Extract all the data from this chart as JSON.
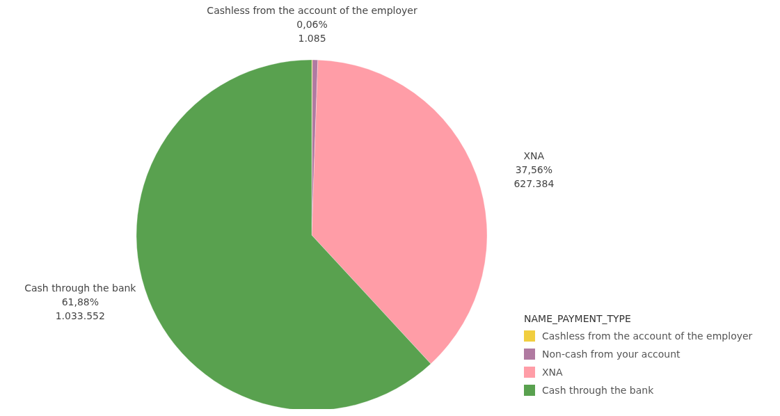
{
  "chart_data": {
    "type": "pie",
    "legend_title": "NAME_PAYMENT_TYPE",
    "categories": [
      "Cashless from the account of the employer",
      "Non-cash from your account",
      "XNA",
      "Cash through the bank"
    ],
    "values": [
      1085,
      8230,
      627384,
      1033552
    ],
    "colors": [
      "#f1ce3f",
      "#b07aa1",
      "#ff9da7",
      "#59a14f"
    ],
    "value_labels": [
      "0,06%\n1.085",
      null,
      "37,56%\n627.384",
      "61,88%\n1.033.552"
    ],
    "legend": "bottom right"
  }
}
